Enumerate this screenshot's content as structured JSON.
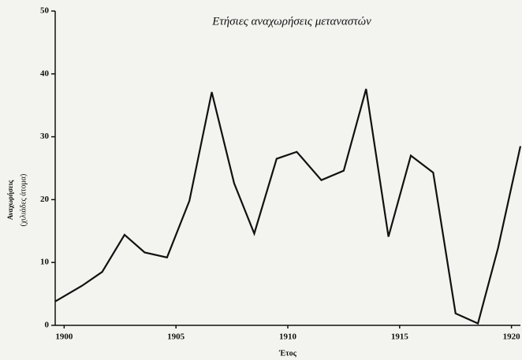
{
  "chart_data": {
    "type": "line",
    "title": "Ετήσιες αναχωρήσεις μεταναστών",
    "y_label": [
      "Αναχωρήσεις",
      "(χιλιάδες άτομα)"
    ],
    "x_label": "Έτος",
    "x": [
      1899.6,
      1900.8,
      1901.7,
      1902.7,
      1903.6,
      1904.6,
      1905.6,
      1906.6,
      1907.6,
      1908.5,
      1909.5,
      1910.4,
      1911.5,
      1912.5,
      1913.5,
      1914.5,
      1915.5,
      1916.5,
      1917.5,
      1918.5,
      1919.4,
      1920.4
    ],
    "series": [
      {
        "name": null,
        "color": "#111111",
        "values": [
          3.8,
          6.3,
          8.5,
          14.4,
          11.6,
          10.8,
          19.8,
          37.1,
          22.6,
          14.6,
          26.5,
          27.6,
          23.1,
          24.6,
          37.6,
          14.1,
          27.0,
          24.3,
          1.9,
          0.3,
          12.3,
          28.5
        ]
      }
    ],
    "xlim": [
      1899.6,
      1920.4
    ],
    "xticks": [
      1900,
      1905,
      1910,
      1915,
      1920
    ],
    "ylim": [
      0,
      50
    ],
    "yticks": [
      0,
      10,
      20,
      30,
      40,
      50
    ],
    "grid": false
  }
}
